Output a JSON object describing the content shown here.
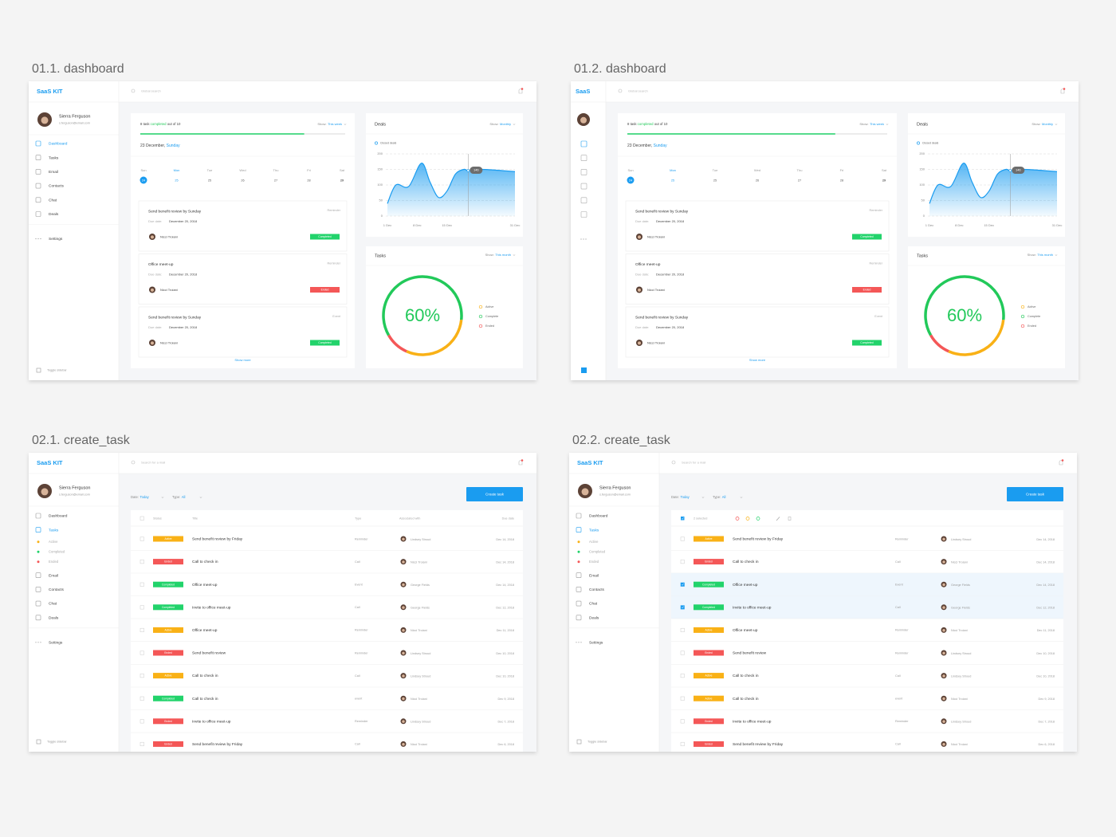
{
  "status_colors": {
    "Completed": "#22d36b",
    "Ended": "#f45757",
    "Active": "#f9b116"
  },
  "screens": [
    {
      "label": "01.1. dashboard",
      "sidebar": {
        "logo": "SaaS KIT",
        "user": {
          "name": "Sierra Ferguson",
          "email": "s.ferguson@email.com"
        },
        "nav": [
          {
            "label": "Dashboard",
            "active": true
          },
          {
            "label": "Tasks"
          },
          {
            "label": "Email"
          },
          {
            "label": "Contacts"
          },
          {
            "label": "Chat"
          },
          {
            "label": "Deals"
          }
        ],
        "settings": "Settings",
        "toggle": "Toggle sidebar"
      },
      "search": "Global search",
      "tasks_card": {
        "progress_text": [
          "8 task",
          "completed",
          "out of 10"
        ],
        "progress_percent": 80,
        "show_label": "Show:",
        "show_value": "This week",
        "date": [
          "23 December,",
          "Sunday"
        ],
        "week": [
          {
            "day": "Sun",
            "date": "24",
            "selected": true
          },
          {
            "day": "Mon",
            "date": "25",
            "highlight": true
          },
          {
            "day": "Tue",
            "date": "25"
          },
          {
            "day": "Wed",
            "date": "26"
          },
          {
            "day": "Thu",
            "date": "27"
          },
          {
            "day": "Fri",
            "date": "28"
          },
          {
            "day": "Sat",
            "date": "29",
            "bold": true
          }
        ],
        "items": [
          {
            "title": "Send benefit review by Sunday",
            "type": "Reminder",
            "due_label": "Due date:",
            "due": "December 20, 2018",
            "person": "Nicci Troiani",
            "status": "Completed"
          },
          {
            "title": "Office meet-up",
            "type": "Reminder",
            "due_label": "Due date:",
            "due": "December 20, 2018",
            "person": "Nicci Troiani",
            "status": "Ended"
          },
          {
            "title": "Send benefit review by Sunday",
            "type": "Event",
            "due_label": "Due date:",
            "due": "December 20, 2018",
            "person": "Nicci Troiani",
            "status": "Completed"
          }
        ],
        "show_more": "Show more"
      },
      "deals_card": {
        "title": "Deals",
        "show_label": "Show:",
        "show_value": "Monthly",
        "legend": "Closed deals",
        "chart": {
          "type": "area",
          "color": "#1a9cf0",
          "x": [
            1,
            3,
            6,
            9,
            11,
            13,
            15,
            17,
            19,
            20,
            23,
            26,
            29,
            31
          ],
          "values": [
            40,
            100,
            95,
            170,
            110,
            60,
            80,
            135,
            150,
            146,
            150,
            148,
            145,
            143
          ],
          "xlim": [
            1,
            31
          ],
          "xticks": [
            {
              "value": 1,
              "label": "1 Dec"
            },
            {
              "value": 8,
              "label": "8 Dec"
            },
            {
              "value": 15,
              "label": "15 Dec"
            },
            {
              "value": 31,
              "label": "31 Dec"
            }
          ],
          "ylim": [
            0,
            200
          ],
          "yticks": [
            0,
            50,
            100,
            150,
            200
          ],
          "grid": true,
          "highlight_x": 20
        }
      },
      "tasks_chart_card": {
        "title": "Tasks",
        "show_label": "Show:",
        "show_value": "This month",
        "chart": {
          "type": "donut",
          "center_label": "60%",
          "series": [
            {
              "name": "Active",
              "color": "#f9b116",
              "value": 30
            },
            {
              "name": "Complete",
              "color": "#22c95a",
              "value": 60
            },
            {
              "name": "Ended",
              "color": "#f45757",
              "value": 10
            }
          ]
        }
      }
    },
    {
      "label": "01.2. dashboard",
      "sidebar": {
        "logo": "SaaS"
      },
      "search": "Global search",
      "tasks_card": {
        "progress_text": [
          "8 task",
          "completed",
          "out of 10"
        ],
        "progress_percent": 80,
        "show_label": "Show:",
        "show_value": "This week",
        "date": [
          "23 December,",
          "Sunday"
        ],
        "week": [
          {
            "day": "Sun",
            "date": "24",
            "selected": true
          },
          {
            "day": "Mon",
            "date": "25",
            "highlight": true
          },
          {
            "day": "Tue",
            "date": "25"
          },
          {
            "day": "Wed",
            "date": "26"
          },
          {
            "day": "Thu",
            "date": "27"
          },
          {
            "day": "Fri",
            "date": "28"
          },
          {
            "day": "Sat",
            "date": "29",
            "bold": true
          }
        ],
        "items": [
          {
            "title": "Send benefit review by Sunday",
            "type": "Reminder",
            "due_label": "Due date:",
            "due": "December 20, 2018",
            "person": "Nicci Troiani",
            "status": "Completed"
          },
          {
            "title": "Office meet-up",
            "type": "Reminder",
            "due_label": "Due date:",
            "due": "December 20, 2018",
            "person": "Nicci Troiani",
            "status": "Ended"
          },
          {
            "title": "Send benefit review by Sunday",
            "type": "Event",
            "due_label": "Due date:",
            "due": "December 20, 2018",
            "person": "Nicci Troiani",
            "status": "Completed"
          }
        ],
        "show_more": "Show more"
      },
      "deals_card": {
        "title": "Deals",
        "show_label": "Show:",
        "show_value": "Monthly",
        "legend": "Closed deals",
        "chart": {
          "type": "area",
          "color": "#1a9cf0",
          "x": [
            1,
            3,
            6,
            9,
            11,
            13,
            15,
            17,
            19,
            20,
            23,
            26,
            29,
            31
          ],
          "values": [
            40,
            100,
            95,
            170,
            110,
            60,
            80,
            135,
            150,
            146,
            150,
            148,
            145,
            143
          ],
          "xlim": [
            1,
            31
          ],
          "xticks": [
            {
              "value": 1,
              "label": "1 Dec"
            },
            {
              "value": 8,
              "label": "8 Dec"
            },
            {
              "value": 15,
              "label": "15 Dec"
            },
            {
              "value": 31,
              "label": "31 Dec"
            }
          ],
          "ylim": [
            0,
            200
          ],
          "yticks": [
            0,
            50,
            100,
            150,
            200
          ],
          "grid": true,
          "highlight_x": 20
        }
      },
      "tasks_chart_card": {
        "title": "Tasks",
        "show_label": "Show:",
        "show_value": "This month",
        "chart": {
          "type": "donut",
          "center_label": "60%",
          "series": [
            {
              "name": "Active",
              "color": "#f9b116",
              "value": 30
            },
            {
              "name": "Complete",
              "color": "#22c95a",
              "value": 60
            },
            {
              "name": "Ended",
              "color": "#f45757",
              "value": 10
            }
          ]
        }
      }
    },
    {
      "label": "02.1. create_task",
      "sidebar": {
        "logo": "SaaS KIT",
        "user": {
          "name": "Sierra Ferguson",
          "email": "s.ferguson@email.com"
        },
        "nav": [
          {
            "label": "Dashboard"
          },
          {
            "label": "Tasks",
            "active": true,
            "sub": [
              {
                "label": "Active"
              },
              {
                "label": "Completed"
              },
              {
                "label": "Ended"
              }
            ]
          },
          {
            "label": "Email"
          },
          {
            "label": "Contacts"
          },
          {
            "label": "Chat"
          },
          {
            "label": "Deals"
          }
        ],
        "settings": "Settings",
        "toggle": "Toggle sidebar"
      },
      "search": "Search for a mail",
      "filters": [
        {
          "label": "Date:",
          "value": "Today"
        },
        {
          "label": "Type:",
          "value": "All"
        }
      ],
      "button": "Create task",
      "table": {
        "columns": [
          "Status",
          "Title",
          "Type",
          "Associated with",
          "Due date"
        ],
        "rows": [
          {
            "status": "Active",
            "title": "Send benefit review by Friday",
            "type": "Reminder",
            "person": "Lindsey Stroud",
            "due": "Dec 14, 2018"
          },
          {
            "status": "Ended",
            "title": "Call to check in",
            "type": "Call",
            "person": "Nicci Troiani",
            "due": "Dec 14, 2018"
          },
          {
            "status": "Completed",
            "title": "Office meet-up",
            "type": "Event",
            "person": "George Fields",
            "due": "Dec 14, 2018"
          },
          {
            "status": "Completed",
            "title": "Invite to office meet-up",
            "type": "Call",
            "person": "George Fields",
            "due": "Dec 12, 2018"
          },
          {
            "status": "Active",
            "title": "Office meet-up",
            "type": "Reminder",
            "person": "Nicci Troiani",
            "due": "Dec 11, 2018"
          },
          {
            "status": "Ended",
            "title": "Send benefit review",
            "type": "Reminder",
            "person": "Lindsey Stroud",
            "due": "Dec 10, 2018"
          },
          {
            "status": "Active",
            "title": "Call to check in",
            "type": "Call",
            "person": "Lindsey Stroud",
            "due": "Dec 10, 2018"
          },
          {
            "status": "Completed",
            "title": "Call to check in",
            "type": "event",
            "person": "Nicci Troiani",
            "due": "Dec 9, 2018"
          },
          {
            "status": "Ended",
            "title": "Invite to office meet-up",
            "type": "Reminder",
            "person": "Lindsey Stroud",
            "due": "Dec 7, 2018"
          },
          {
            "status": "Ended",
            "title": "Send benefit review by Friday",
            "type": "Call",
            "person": "Nicci Troiani",
            "due": "Dec 6, 2018"
          }
        ]
      }
    },
    {
      "label": "02.2. create_task",
      "sidebar": {
        "logo": "SaaS KIT",
        "user": {
          "name": "Sierra Ferguson",
          "email": "s.ferguson@email.com"
        },
        "nav": [
          {
            "label": "Dashboard"
          },
          {
            "label": "Tasks",
            "active": true,
            "sub": [
              {
                "label": "Active"
              },
              {
                "label": "Completed"
              },
              {
                "label": "Ended"
              }
            ]
          },
          {
            "label": "Email"
          },
          {
            "label": "Contacts"
          },
          {
            "label": "Chat"
          },
          {
            "label": "Deals"
          }
        ],
        "settings": "Settings",
        "toggle": "Toggle sidebar"
      },
      "search": "Search for a mail",
      "filters": [
        {
          "label": "Date:",
          "value": "Today"
        },
        {
          "label": "Type:",
          "value": "All"
        }
      ],
      "button": "Create task",
      "table": {
        "selection": "2 selected",
        "rows": [
          {
            "status": "Active",
            "title": "Send benefit review by Friday",
            "type": "Reminder",
            "person": "Lindsey Stroud",
            "due": "Dec 14, 2018"
          },
          {
            "status": "Ended",
            "title": "Call to check in",
            "type": "Call",
            "person": "Nicci Troiani",
            "due": "Dec 14, 2018"
          },
          {
            "status": "Completed",
            "title": "Office meet-up",
            "type": "Event",
            "person": "George Fields",
            "due": "Dec 14, 2018",
            "checked": true
          },
          {
            "status": "Completed",
            "title": "Invite to office meet-up",
            "type": "Call",
            "person": "George Fields",
            "due": "Dec 12, 2018",
            "checked": true
          },
          {
            "status": "Active",
            "title": "Office meet-up",
            "type": "Reminder",
            "person": "Nicci Troiani",
            "due": "Dec 11, 2018"
          },
          {
            "status": "Ended",
            "title": "Send benefit review",
            "type": "Reminder",
            "person": "Lindsey Stroud",
            "due": "Dec 10, 2018"
          },
          {
            "status": "Active",
            "title": "Call to check in",
            "type": "Call",
            "person": "Lindsey Stroud",
            "due": "Dec 10, 2018"
          },
          {
            "status": "Active",
            "title": "Call to check in",
            "type": "event",
            "person": "Nicci Troiani",
            "due": "Dec 9, 2018"
          },
          {
            "status": "Ended",
            "title": "Invite to office meet-up",
            "type": "Reminder",
            "person": "Lindsey Stroud",
            "due": "Dec 7, 2018"
          },
          {
            "status": "Ended",
            "title": "Send benefit review by Friday",
            "type": "Call",
            "person": "Nicci Troiani",
            "due": "Dec 6, 2018"
          }
        ]
      }
    }
  ]
}
